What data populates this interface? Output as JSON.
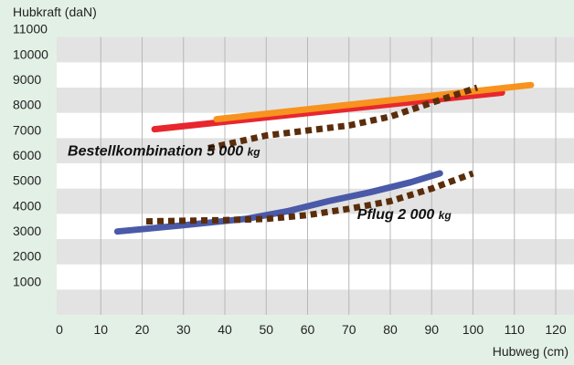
{
  "chart_data": {
    "type": "line",
    "ylabel": "Hubkraft (daN)",
    "xlabel": "Hubweg (cm)",
    "xlim": [
      0,
      120
    ],
    "ylim": [
      0,
      11000
    ],
    "xticks": [
      0,
      10,
      20,
      30,
      40,
      50,
      60,
      70,
      80,
      90,
      100,
      110,
      120
    ],
    "yticks": [
      1000,
      2000,
      3000,
      4000,
      5000,
      6000,
      7000,
      8000,
      9000,
      10000,
      11000
    ],
    "grid": true,
    "background": "#e3f0e6",
    "band_colors": [
      "#e3e3e3",
      "#ffffff"
    ],
    "annotations": [
      {
        "text": "Bestellkombination 5 000",
        "unit": "kg",
        "x": 2,
        "y": 6300
      },
      {
        "text": "Pflug 2 000",
        "unit": "kg",
        "x": 72,
        "y": 3800
      }
    ],
    "series": [
      {
        "color": "#e8262e",
        "style": "solid",
        "points": [
          [
            23,
            7350
          ],
          [
            107,
            8800
          ]
        ]
      },
      {
        "color": "#f7931e",
        "style": "solid",
        "points": [
          [
            38,
            7750
          ],
          [
            114,
            9100
          ]
        ]
      },
      {
        "color": "#5b2d0b",
        "style": "dotted",
        "points": [
          [
            36,
            6600
          ],
          [
            50,
            7100
          ],
          [
            70,
            7500
          ],
          [
            80,
            7850
          ],
          [
            90,
            8400
          ],
          [
            101,
            9000
          ]
        ]
      },
      {
        "color": "#4a5aa8",
        "style": "solid",
        "points": [
          [
            14,
            3300
          ],
          [
            30,
            3550
          ],
          [
            45,
            3800
          ],
          [
            55,
            4100
          ],
          [
            65,
            4500
          ],
          [
            75,
            4850
          ],
          [
            85,
            5250
          ],
          [
            92,
            5600
          ]
        ]
      },
      {
        "color": "#5b2d0b",
        "style": "dotted",
        "points": [
          [
            21,
            3700
          ],
          [
            40,
            3750
          ],
          [
            50,
            3800
          ],
          [
            60,
            3950
          ],
          [
            70,
            4200
          ],
          [
            80,
            4500
          ],
          [
            90,
            5000
          ],
          [
            100,
            5600
          ]
        ]
      }
    ]
  }
}
